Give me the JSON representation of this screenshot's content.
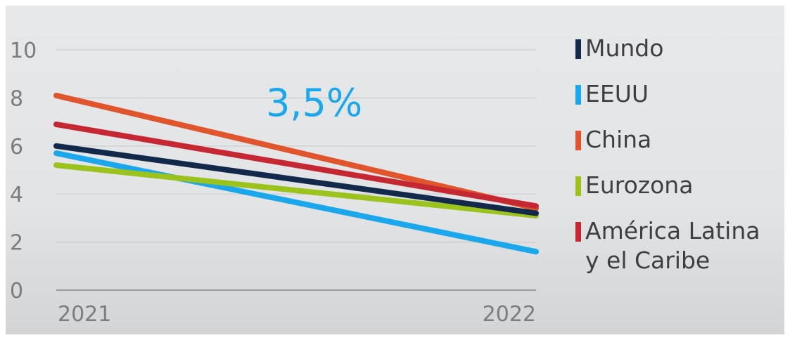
{
  "chart_data": {
    "type": "line",
    "x": [
      "2021",
      "2022"
    ],
    "yticks": [
      0,
      2,
      4,
      6,
      8,
      10
    ],
    "ylim": [
      0,
      10
    ],
    "grid": true,
    "legend_position": "right",
    "annotation": "3,5%",
    "series": [
      {
        "name": "Mundo",
        "color": "#13294b",
        "values": [
          6.0,
          3.2
        ]
      },
      {
        "name": "EEUU",
        "color": "#1aa7ec",
        "values": [
          5.7,
          1.6
        ]
      },
      {
        "name": "China",
        "color": "#e0552b",
        "values": [
          8.1,
          3.4
        ]
      },
      {
        "name": "Eurozona",
        "color": "#9bc31c",
        "values": [
          5.2,
          3.1
        ]
      },
      {
        "name": "América Latina\ny el Caribe",
        "color": "#c62833",
        "values": [
          6.9,
          3.5
        ]
      }
    ]
  },
  "colors": {
    "annotation": "#1aa7ec",
    "grid": "#c9cbcd",
    "axis": "#8a8a8a"
  }
}
